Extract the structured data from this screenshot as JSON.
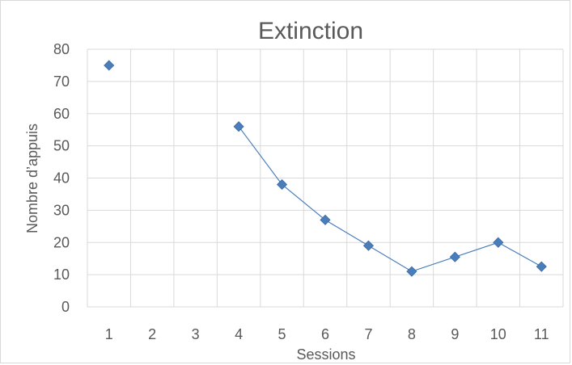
{
  "chart_data": {
    "type": "line",
    "title": "Extinction",
    "xlabel": "Sessions",
    "ylabel": "Nombre d’appuis",
    "categories": [
      "1",
      "2",
      "3",
      "4",
      "5",
      "6",
      "7",
      "8",
      "9",
      "10",
      "11"
    ],
    "series": [
      {
        "values": [
          75,
          null,
          null,
          56,
          38,
          27,
          19,
          11,
          15.5,
          20,
          12.5
        ]
      }
    ],
    "ylim": [
      0,
      80
    ],
    "yticks": [
      "0",
      "10",
      "20",
      "30",
      "40",
      "50",
      "60",
      "70",
      "80"
    ],
    "grid": true,
    "legend": "none",
    "marker": "diamond",
    "colors": {
      "series": "#4a7ebb",
      "series_line": "#4a7ebb",
      "grid": "#d9d9d9",
      "text": "#595959"
    }
  }
}
